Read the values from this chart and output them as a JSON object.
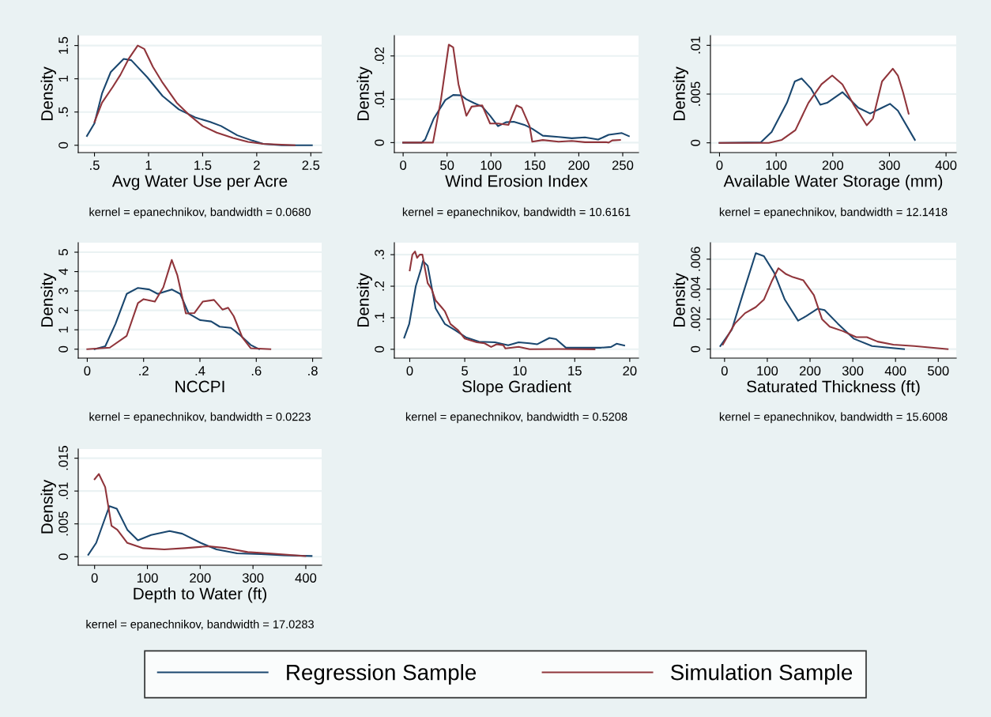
{
  "chart_data": [
    {
      "type": "line",
      "xlabel": "Avg Water Use per Acre",
      "ylabel": "Density",
      "annotations": [
        "kernel = epanechnikov, bandwidth = 0.0680"
      ],
      "xlim": [
        0.35,
        2.6
      ],
      "ylim": [
        -0.11,
        1.65
      ],
      "xticks": [
        {
          "value": 0.5,
          "label": ".5"
        },
        1,
        1.5,
        2,
        2.5
      ],
      "yticks": [
        0,
        {
          "value": 0.5,
          "label": ".5"
        },
        1,
        1.5
      ],
      "grid": "y",
      "series": [
        {
          "color": "#1a476f",
          "x": [
            0.43,
            0.5,
            0.57,
            0.65,
            0.77,
            0.84,
            0.99,
            1.13,
            1.28,
            1.43,
            1.57,
            1.67,
            1.82,
            1.96,
            2.06,
            2.23,
            2.51
          ],
          "values": [
            0.14,
            0.33,
            0.78,
            1.1,
            1.3,
            1.28,
            1.02,
            0.74,
            0.54,
            0.42,
            0.35,
            0.29,
            0.15,
            0.07,
            0.02,
            0,
            0
          ]
        },
        {
          "color": "#90353b",
          "x": [
            0.5,
            0.57,
            0.67,
            0.74,
            0.82,
            0.9,
            0.96,
            1.04,
            1.13,
            1.26,
            1.38,
            1.5,
            1.63,
            1.78,
            1.92,
            2.06,
            2.35
          ],
          "values": [
            0.35,
            0.64,
            0.88,
            1.06,
            1.31,
            1.5,
            1.45,
            1.18,
            0.94,
            0.64,
            0.45,
            0.29,
            0.19,
            0.11,
            0.05,
            0.02,
            0
          ]
        }
      ]
    },
    {
      "type": "line",
      "xlabel": "Wind Erosion Index",
      "ylabel": "Density",
      "annotations": [
        "kernel = epanechnikov, bandwidth = 10.6161"
      ],
      "xlim": [
        -10,
        268
      ],
      "ylim": [
        -0.0023,
        0.0247
      ],
      "xticks": [
        0,
        50,
        100,
        150,
        200,
        250
      ],
      "yticks": [
        0,
        {
          "value": 0.01,
          "label": ".01"
        },
        {
          "value": 0.02,
          "label": ".02"
        }
      ],
      "grid": "y",
      "series": [
        {
          "color": "#1a476f",
          "x": [
            0,
            21,
            25,
            35,
            48,
            57,
            66,
            72,
            81,
            90,
            99,
            108,
            117,
            126,
            138,
            147,
            159,
            177,
            192,
            207,
            222,
            234,
            249,
            257
          ],
          "values": [
            0,
            0,
            0.0007,
            0.0056,
            0.0098,
            0.011,
            0.0109,
            0.01,
            0.0091,
            0.0083,
            0.0062,
            0.0038,
            0.0047,
            0.0048,
            0.0041,
            0.0032,
            0.0016,
            0.0013,
            0.001,
            0.0012,
            0.0007,
            0.0018,
            0.0022,
            0.0015
          ]
        },
        {
          "color": "#90353b",
          "x": [
            0,
            34,
            43,
            52,
            57,
            63,
            72,
            78,
            90,
            99,
            108,
            120,
            129,
            135,
            144,
            147,
            159,
            177,
            192,
            207,
            231,
            234,
            238,
            247
          ],
          "values": [
            0,
            0,
            0.0098,
            0.0226,
            0.022,
            0.0135,
            0.0062,
            0.0083,
            0.0086,
            0.0044,
            0.0044,
            0.0041,
            0.0086,
            0.008,
            0.0038,
            0.0002,
            0.0006,
            0.0002,
            0.0004,
            0.0001,
            0.0001,
            0,
            0.0005,
            0.0006
          ]
        }
      ]
    },
    {
      "type": "line",
      "xlabel": "Available Water Storage (mm)",
      "ylabel": "Density",
      "annotations": [
        "kernel = epanechnikov, bandwidth = 12.1418"
      ],
      "xlim": [
        -16,
        418
      ],
      "ylim": [
        -0.001,
        0.011
      ],
      "xticks": [
        0,
        100,
        200,
        300,
        400
      ],
      "yticks": [
        0,
        {
          "value": 0.005,
          "label": ".005"
        },
        {
          "value": 0.01,
          "label": ".01"
        }
      ],
      "grid": "y",
      "series": [
        {
          "color": "#1a476f",
          "x": [
            0,
            73,
            92,
            119,
            133,
            145,
            161,
            178,
            190,
            217,
            245,
            266,
            287,
            301,
            315,
            345
          ],
          "values": [
            0,
            5e-05,
            0.0011,
            0.0041,
            0.0063,
            0.0066,
            0.0056,
            0.0039,
            0.0041,
            0.0052,
            0.0036,
            0.003,
            0.0036,
            0.004,
            0.0033,
            0.0003
          ]
        },
        {
          "color": "#90353b",
          "x": [
            0,
            87,
            110,
            134,
            157,
            180,
            199,
            217,
            236,
            260,
            271,
            287,
            306,
            315,
            324,
            334
          ],
          "values": [
            0,
            0,
            0.0003,
            0.0013,
            0.0041,
            0.006,
            0.0069,
            0.006,
            0.004,
            0.0018,
            0.0025,
            0.0063,
            0.0076,
            0.0069,
            0.0052,
            0.003
          ]
        }
      ]
    },
    {
      "type": "line",
      "xlabel": "NCCPI",
      "ylabel": "Density",
      "annotations": [
        "kernel = epanechnikov, bandwidth = 0.0223"
      ],
      "xlim": [
        -0.032,
        0.832
      ],
      "ylim": [
        -0.46,
        5.49
      ],
      "xticks": [
        0,
        {
          "value": 0.2,
          "label": ".2"
        },
        {
          "value": 0.4,
          "label": ".4"
        },
        {
          "value": 0.6,
          "label": ".6"
        },
        {
          "value": 0.8,
          "label": ".8"
        }
      ],
      "yticks": [
        0,
        1,
        2,
        3,
        4,
        5
      ],
      "grid": "y",
      "series": [
        {
          "color": "#1a476f",
          "x": [
            0.026,
            0.064,
            0.1,
            0.14,
            0.18,
            0.22,
            0.25,
            0.3,
            0.33,
            0.36,
            0.4,
            0.44,
            0.47,
            0.51,
            0.54,
            0.58,
            0.61
          ],
          "values": [
            0,
            0.15,
            1.3,
            2.85,
            3.16,
            3.08,
            2.85,
            3.08,
            2.85,
            1.84,
            1.5,
            1.43,
            1.16,
            1.1,
            0.76,
            0.22,
            0
          ]
        },
        {
          "color": "#90353b",
          "x": [
            0,
            0.08,
            0.14,
            0.18,
            0.2,
            0.24,
            0.27,
            0.3,
            0.32,
            0.35,
            0.38,
            0.41,
            0.45,
            0.48,
            0.5,
            0.52,
            0.55,
            0.58,
            0.65
          ],
          "values": [
            0,
            0.08,
            0.69,
            2.38,
            2.58,
            2.45,
            3.19,
            4.6,
            3.8,
            1.84,
            1.86,
            2.45,
            2.54,
            2.04,
            2.14,
            1.7,
            0.62,
            0.05,
            0
          ]
        }
      ]
    },
    {
      "type": "line",
      "xlabel": "Slope Gradient",
      "ylabel": "Density",
      "annotations": [
        "kernel = epanechnikov, bandwidth = 0.5208"
      ],
      "xlim": [
        -1.4,
        20.8
      ],
      "ylim": [
        -0.028,
        0.338
      ],
      "xticks": [
        0,
        5,
        10,
        15,
        20
      ],
      "yticks": [
        0,
        {
          "value": 0.1,
          "label": ".1"
        },
        {
          "value": 0.2,
          "label": ".2"
        },
        {
          "value": 0.3,
          "label": ".3"
        }
      ],
      "grid": "y",
      "series": [
        {
          "color": "#1a476f",
          "x": [
            -0.5,
            -0.05,
            0.55,
            1.03,
            1.2,
            1.63,
            2.35,
            3.2,
            4.15,
            5.1,
            6.3,
            7.75,
            8.95,
            9.9,
            10.9,
            11.6,
            12.7,
            13.3,
            14.2,
            17.4,
            18.3,
            18.8,
            19.5
          ],
          "values": [
            0.037,
            0.08,
            0.2,
            0.255,
            0.28,
            0.265,
            0.13,
            0.08,
            0.06,
            0.038,
            0.024,
            0.022,
            0.013,
            0.022,
            0.019,
            0.016,
            0.036,
            0.032,
            0.005,
            0.005,
            0.0075,
            0.0175,
            0.012
          ]
        },
        {
          "color": "#90353b",
          "x": [
            0,
            0.24,
            0.48,
            0.67,
            0.91,
            1.15,
            1.63,
            2,
            2.35,
            2.85,
            3.2,
            3.7,
            4.4,
            5,
            6.1,
            6.8,
            7.4,
            7.9,
            8.5,
            8.7,
            9.9,
            10.9,
            13.5,
            16.8
          ],
          "values": [
            0.25,
            0.3,
            0.31,
            0.29,
            0.3,
            0.3,
            0.21,
            0.19,
            0.155,
            0.135,
            0.12,
            0.08,
            0.06,
            0.034,
            0.022,
            0.019,
            0.0075,
            0.016,
            0.013,
            0.0025,
            0.0075,
            0,
            0.0008,
            0
          ]
        }
      ]
    },
    {
      "type": "line",
      "xlabel": "Saturated Thickness (ft)",
      "ylabel": "Density",
      "annotations": [
        "kernel = epanechnikov, bandwidth = 15.6008"
      ],
      "xlim": [
        -33,
        542
      ],
      "ylim": [
        -0.0006,
        0.0071
      ],
      "xticks": [
        0,
        100,
        200,
        300,
        400,
        500
      ],
      "yticks": [
        0,
        {
          "value": 0.002,
          "label": ".002"
        },
        {
          "value": 0.004,
          "label": ".004"
        },
        {
          "value": 0.006,
          "label": ".006"
        }
      ],
      "grid": "y",
      "series": [
        {
          "color": "#1a476f",
          "x": [
            -10,
            17,
            42,
            73,
            92,
            116,
            141,
            172,
            191,
            218,
            234,
            265,
            302,
            345,
            420
          ],
          "values": [
            0.0002,
            0.0013,
            0.0036,
            0.0064,
            0.0062,
            0.0051,
            0.0033,
            0.0019,
            0.0022,
            0.0027,
            0.0026,
            0.0017,
            0.0007,
            0.0002,
            0
          ]
        },
        {
          "color": "#90353b",
          "x": [
            -4,
            24,
            48,
            73,
            92,
            110,
            126,
            144,
            160,
            184,
            209,
            228,
            246,
            277,
            308,
            333,
            358,
            395,
            444,
            522
          ],
          "values": [
            0.0003,
            0.0017,
            0.0024,
            0.0028,
            0.0033,
            0.0045,
            0.0054,
            0.005,
            0.0048,
            0.0046,
            0.0036,
            0.002,
            0.0015,
            0.0012,
            0.0008,
            0.0008,
            0.0005,
            0.0003,
            0.0002,
            0
          ]
        }
      ]
    },
    {
      "type": "line",
      "xlabel": "Depth to Water (ft)",
      "ylabel": "Density",
      "annotations": [
        "kernel = epanechnikov, bandwidth = 17.0283"
      ],
      "xlim": [
        -31,
        430
      ],
      "ylim": [
        -0.0013,
        0.0164
      ],
      "xticks": [
        0,
        100,
        200,
        300,
        400
      ],
      "yticks": [
        0,
        {
          "value": 0.005,
          "label": ".005"
        },
        {
          "value": 0.01,
          "label": ".01"
        },
        {
          "value": 0.015,
          "label": ".015"
        }
      ],
      "grid": "y",
      "legend": "bottom",
      "series": [
        {
          "name": "Regression Sample",
          "color": "#1a476f",
          "x": [
            -12,
            3,
            28,
            42,
            62,
            82,
            107,
            142,
            166,
            201,
            231,
            270,
            315,
            359,
            411
          ],
          "values": [
            0.0003,
            0.0021,
            0.0077,
            0.0073,
            0.0041,
            0.0025,
            0.0033,
            0.0039,
            0.0035,
            0.0021,
            0.0011,
            0.0005,
            0.0004,
            0.0002,
            0.0001
          ]
        },
        {
          "name": "Simulation Sample",
          "color": "#90353b",
          "x": [
            0,
            8,
            20,
            32,
            43,
            62,
            92,
            132,
            171,
            216,
            250,
            290,
            330,
            399
          ],
          "values": [
            0.0118,
            0.0126,
            0.0106,
            0.0047,
            0.0041,
            0.0021,
            0.0013,
            0.0011,
            0.0013,
            0.0016,
            0.0013,
            0.0007,
            0.0005,
            0.0001
          ]
        }
      ]
    }
  ]
}
